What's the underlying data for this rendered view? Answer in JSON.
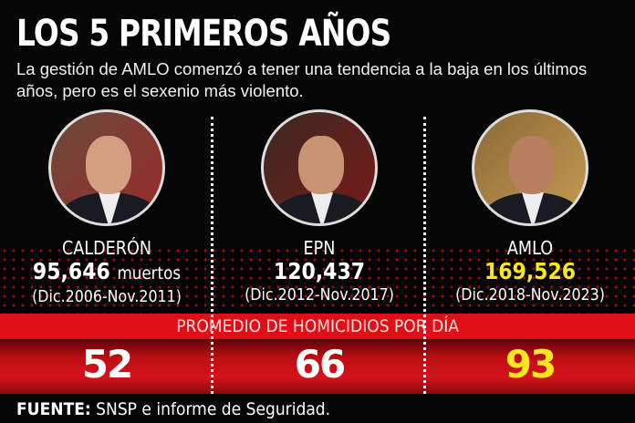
{
  "title": "LOS 5 PRIMEROS AÑOS",
  "subtitle": "La gestión de AMLO comenzó a tener una tendencia a la baja en los últimos años, pero es el sexenio más violento.",
  "presidents": [
    {
      "name": "CALDERÓN",
      "total": "95,646",
      "unit": "muertos",
      "period": "(Dic.2006-Nov.2011)",
      "daily": "52"
    },
    {
      "name": "EPN",
      "total": "120,437",
      "period": "(Dic.2012-Nov.2017)",
      "daily": "66"
    },
    {
      "name": "AMLO",
      "total": "169,526",
      "period": "(Dic.2018-Nov.2023)",
      "daily": "93"
    }
  ],
  "band_label": "PROMEDIO DE HOMICIDIOS POR DÍA",
  "source": {
    "label": "FUENTE:",
    "text": " SNSP e informe de Seguridad."
  },
  "colors": {
    "accent": "#e00f16",
    "highlight": "#f8e71c"
  }
}
